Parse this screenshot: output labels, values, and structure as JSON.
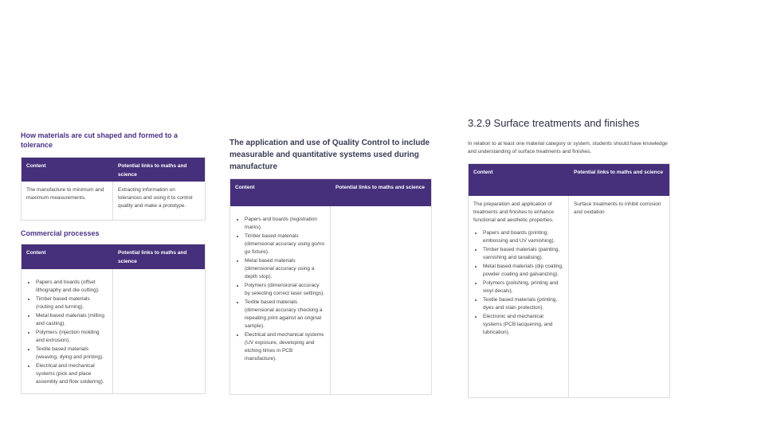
{
  "left": {
    "heading1": "How materials are cut shaped and formed to a tolerance",
    "table1": {
      "headers": [
        "Content",
        "Potential links to maths and science"
      ],
      "cells": [
        "The manufacture to minimum and maximum measurements.",
        "Extracting information on tolerances and using it to control quality and make a prototype."
      ]
    },
    "heading2": "Commercial processes",
    "table2": {
      "headers": [
        "Content",
        "Potential links to maths and science"
      ],
      "bullets": [
        "Papers and boards (offset lithography and die cutting).",
        "Timber based materials (routing and turning).",
        "Metal based materials (milling and casting).",
        "Polymers (injection molding and extrusion).",
        "Textile based materials (weaving, dying and printing).",
        "Electrical and mechanical systems (pick and place assembly and flow soldering)."
      ]
    }
  },
  "middle": {
    "heading": "The application and use of Quality Control to include measurable and quantitative systems used during manufacture",
    "table": {
      "headers": [
        "Content",
        "Potential links to maths and science"
      ],
      "bullets": [
        "Papers and boards (registration marks).",
        "Timber based materials (dimensional accuracy using go/no go fixture).",
        "Metal based materials (dimensional accuracy using a depth stop).",
        "Polymers (dimensional accuracy by selecting correct laser settings).",
        "Textile based materials (dimensional accuracy checking a repeating print against an original sample).",
        "Electrical and mechanical systems (UV exposure, developing and etching times in PCB manufacture)."
      ]
    }
  },
  "right": {
    "title": "3.2.9 Surface treatments and finishes",
    "intro": "In relation to at least one material category or system, students should have knowledge and understanding of surface treatments and finishes.",
    "table": {
      "headers": [
        "Content",
        "Potential links to maths and science"
      ],
      "content": "The preparation and application of treatments and finishes to enhance functional and aesthetic properties.",
      "bullets": [
        "Papers and boards (printing, embossing and UV varnishing).",
        "Timber based materials (painting, varnishing and tanalising).",
        "Metal based materials (dip coating, powder coating and galvanizing).",
        "Polymers (polishing, printing and vinyl decals).",
        "Textile based materials (printing, dyes and stain protection).",
        "Electronic and mechanical systems (PCB lacquering, and lubrication)."
      ],
      "links": "Surface treatments to inhibit corrosion and oxidation"
    }
  }
}
